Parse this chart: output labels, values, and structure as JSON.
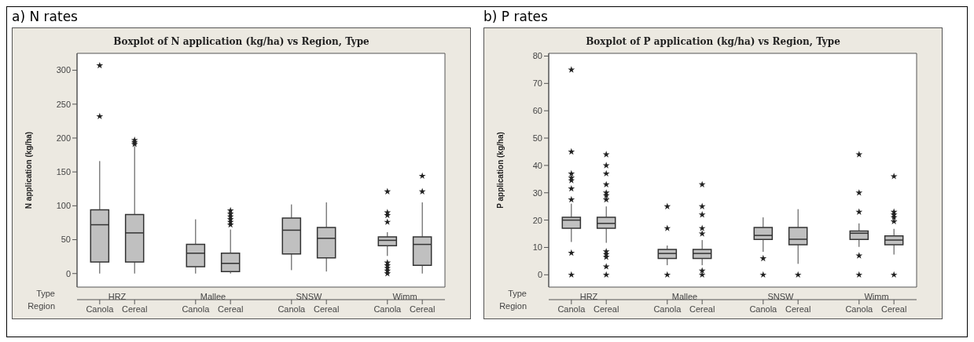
{
  "chart_data": [
    {
      "type": "box",
      "title": "Boxplot of N application (kg/ha) vs Region, Type",
      "ylabel": "N application (kg/ha)",
      "categories": [
        "Canola",
        "Cereal",
        "Canola",
        "Cereal",
        "Canola",
        "Cereal",
        "Canola",
        "Cereal"
      ],
      "color": "#c0c0c0",
      "marker": "star",
      "ylim": [
        -20,
        325
      ],
      "yticks": [
        0,
        50,
        100,
        150,
        200,
        250,
        300
      ],
      "annotations": [
        "a) N rates",
        "Type",
        "Region",
        "HRZ",
        "Mallee",
        "SNSW",
        "Wimm"
      ],
      "boxes": [
        {
          "low": 0,
          "q1": 17,
          "median": 72,
          "q3": 94,
          "high": 166,
          "outliers": [
            232,
            307
          ]
        },
        {
          "low": 0,
          "q1": 17,
          "median": 60,
          "q3": 87,
          "high": 188,
          "outliers": [
            191,
            194,
            197
          ]
        },
        {
          "low": 0,
          "q1": 10,
          "median": 30,
          "q3": 43,
          "high": 80
        },
        {
          "low": 0,
          "q1": 3,
          "median": 15,
          "q3": 30,
          "high": 65,
          "outliers": [
            72,
            76,
            80,
            84,
            88,
            93
          ]
        },
        {
          "low": 5,
          "q1": 29,
          "median": 64,
          "q3": 82,
          "high": 102
        },
        {
          "low": 3,
          "q1": 23,
          "median": 52,
          "q3": 68,
          "high": 105
        },
        {
          "low": 26,
          "q1": 41,
          "median": 49,
          "q3": 54,
          "high": 61,
          "outliers": [
            0,
            4,
            8,
            12,
            16,
            76,
            86,
            90,
            121
          ]
        },
        {
          "low": 0,
          "q1": 12,
          "median": 43,
          "q3": 54,
          "high": 105,
          "outliers": [
            121,
            144
          ]
        }
      ]
    },
    {
      "type": "box",
      "title": "Boxplot of P application (kg/ha) vs Region, Type",
      "ylabel": "P application (kg/ha)",
      "categories": [
        "Canola",
        "Cereal",
        "Canola",
        "Cereal",
        "Canola",
        "Cereal",
        "Canola",
        "Cereal"
      ],
      "color": "#c0c0c0",
      "marker": "star",
      "ylim": [
        -4.5,
        81
      ],
      "yticks": [
        0,
        10,
        20,
        30,
        40,
        50,
        60,
        70,
        80
      ],
      "annotations": [
        "b) P rates",
        "Type",
        "Region",
        "HRZ",
        "Mallee",
        "SNSW",
        "Wimm"
      ],
      "boxes": [
        {
          "low": 12,
          "q1": 17,
          "median": 20,
          "q3": 21,
          "high": 26,
          "outliers": [
            0,
            8,
            27.5,
            31.5,
            34.5,
            35.5,
            37,
            45,
            75
          ]
        },
        {
          "low": 11.7,
          "q1": 17,
          "median": 18.8,
          "q3": 21,
          "high": 25,
          "outliers": [
            0,
            3,
            6.5,
            7.5,
            8.5,
            27.5,
            29,
            30,
            33,
            37,
            40,
            44
          ]
        },
        {
          "low": 3.5,
          "q1": 6,
          "median": 7.8,
          "q3": 9.3,
          "high": 10.7,
          "outliers": [
            0,
            17,
            25
          ]
        },
        {
          "low": 3.5,
          "q1": 6,
          "median": 7.8,
          "q3": 9.3,
          "high": 12.7,
          "outliers": [
            0,
            1.5,
            15,
            17,
            22,
            25,
            33
          ]
        },
        {
          "low": 8.4,
          "q1": 12.9,
          "median": 14.4,
          "q3": 17.3,
          "high": 21,
          "outliers": [
            0,
            6
          ]
        },
        {
          "low": 4,
          "q1": 11,
          "median": 13,
          "q3": 17.3,
          "high": 24,
          "outliers": [
            0
          ]
        },
        {
          "low": 10.2,
          "q1": 12.9,
          "median": 15.2,
          "q3": 16,
          "high": 18.8,
          "outliers": [
            0,
            7,
            23,
            30,
            44
          ]
        },
        {
          "low": 7.4,
          "q1": 11,
          "median": 12.7,
          "q3": 14.2,
          "high": 16.8,
          "outliers": [
            0,
            19.5,
            21,
            22,
            23,
            36
          ]
        }
      ]
    }
  ]
}
